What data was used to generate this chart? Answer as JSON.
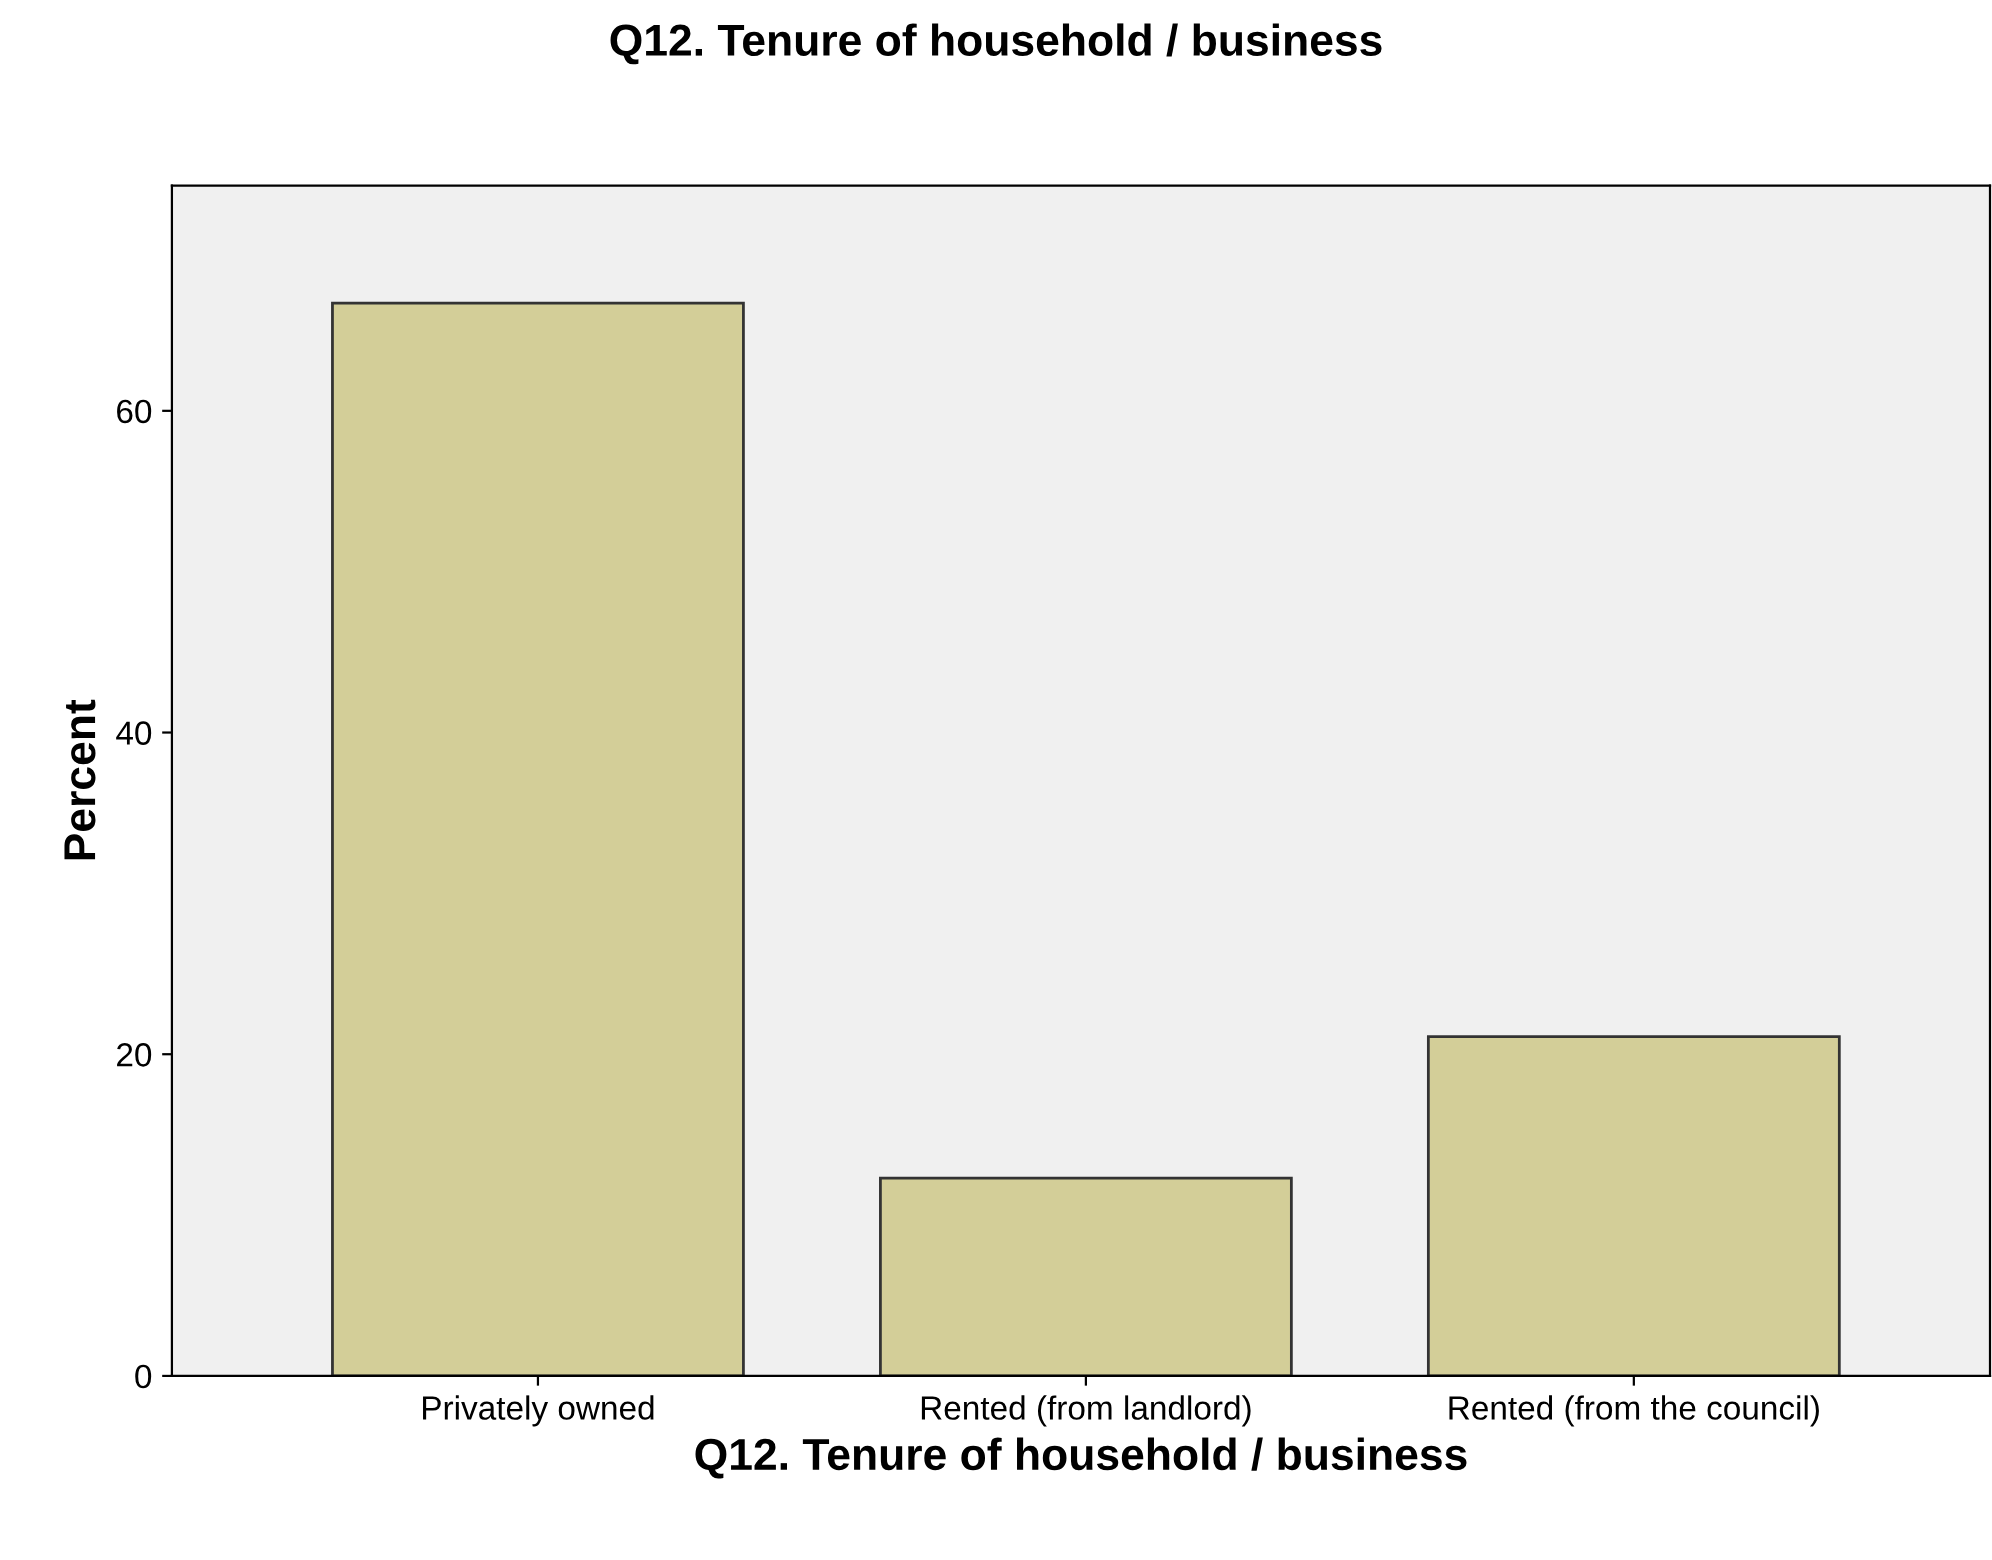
{
  "chart_data": {
    "type": "bar",
    "title": "Q12. Tenure of household / business",
    "xlabel": "Q12. Tenure of household / business",
    "ylabel": "Percent",
    "categories": [
      "Privately owned",
      "Rented (from landlord)",
      "Rented (from the council)"
    ],
    "values": [
      66.7,
      12.3,
      21.1
    ],
    "color": "#d3ce98",
    "ylim": [
      0,
      74
    ],
    "yticks": [
      0,
      20,
      40,
      60
    ],
    "grid": false,
    "legend": false
  }
}
